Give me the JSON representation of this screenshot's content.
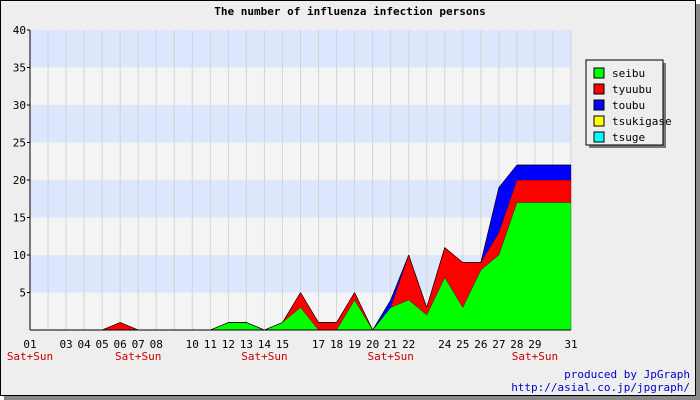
{
  "chart_data": {
    "type": "area",
    "stacked": true,
    "title": "The number of influenza infection persons",
    "xlabel": "",
    "ylabel": "",
    "ylim": [
      0,
      40
    ],
    "yticks": [
      5,
      10,
      15,
      20,
      25,
      30,
      35,
      40
    ],
    "grid": "horizontal bands, light blue and light gray alternating every 5; vertical grid lines per day",
    "legend_position": "right-top",
    "x": [
      "01",
      "02",
      "03",
      "04",
      "05",
      "06",
      "07",
      "08",
      "09",
      "10",
      "11",
      "12",
      "13",
      "14",
      "15",
      "16",
      "17",
      "18",
      "19",
      "20",
      "21",
      "22",
      "23",
      "24",
      "25",
      "26",
      "27",
      "28",
      "29",
      "30",
      "31"
    ],
    "xtick_labels": [
      "01",
      "03",
      "04",
      "05",
      "06",
      "07",
      "08",
      "10",
      "11",
      "12",
      "13",
      "14",
      "15",
      "17",
      "18",
      "19",
      "20",
      "21",
      "22",
      "24",
      "25",
      "26",
      "27",
      "28",
      "29",
      "31"
    ],
    "weekend_labels": [
      {
        "at": "01",
        "text": "Sat+Sun"
      },
      {
        "at": "07",
        "text": "Sat+Sun"
      },
      {
        "at": "14",
        "text": "Sat+Sun"
      },
      {
        "at": "21",
        "text": "Sat+Sun"
      },
      {
        "at": "29",
        "text": "Sat+Sun"
      }
    ],
    "series": [
      {
        "name": "seibu",
        "color": "#00ff00",
        "values": [
          0,
          0,
          0,
          0,
          0,
          0,
          0,
          0,
          0,
          0,
          0,
          1,
          1,
          0,
          1,
          3,
          0,
          0,
          4,
          0,
          3,
          4,
          2,
          7,
          3,
          8,
          10,
          17,
          17,
          17,
          17
        ]
      },
      {
        "name": "tyuubu",
        "color": "#ff0000",
        "values": [
          0,
          0,
          0,
          0,
          0,
          1,
          0,
          0,
          0,
          0,
          0,
          0,
          0,
          0,
          0,
          2,
          1,
          1,
          1,
          0,
          0,
          6,
          1,
          4,
          6,
          1,
          3,
          3,
          3,
          3,
          3
        ]
      },
      {
        "name": "toubu",
        "color": "#0000ff",
        "values": [
          0,
          0,
          0,
          0,
          0,
          0,
          0,
          0,
          0,
          0,
          0,
          0,
          0,
          0,
          0,
          0,
          0,
          0,
          0,
          0,
          1,
          0,
          0,
          0,
          0,
          0,
          6,
          2,
          2,
          2,
          2
        ]
      },
      {
        "name": "tsukigase",
        "color": "#ffff00",
        "values": [
          0,
          0,
          0,
          0,
          0,
          0,
          0,
          0,
          0,
          0,
          0,
          0,
          0,
          0,
          0,
          0,
          0,
          0,
          0,
          0,
          0,
          0,
          0,
          0,
          0,
          0,
          0,
          0,
          0,
          0,
          0
        ]
      },
      {
        "name": "tsuge",
        "color": "#00ffff",
        "values": [
          0,
          0,
          0,
          0,
          0,
          0,
          0,
          0,
          0,
          0,
          0,
          0,
          0,
          0,
          0,
          0,
          0,
          0,
          0,
          0,
          0,
          0,
          0,
          0,
          0,
          0,
          0,
          0,
          0,
          0,
          0
        ]
      }
    ]
  },
  "credit": {
    "line1": "produced by JpGraph",
    "line2": "http://asial.co.jp/jpgraph/"
  }
}
